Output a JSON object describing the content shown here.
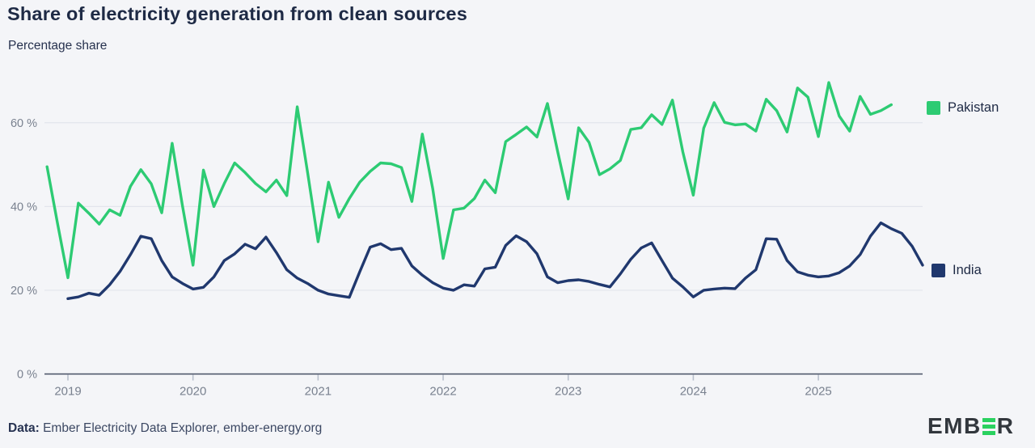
{
  "header": {
    "title": "Share of electricity generation from clean sources",
    "subtitle": "Percentage share"
  },
  "footer": {
    "data_label": "Data:",
    "source_text": " Ember Electricity Data Explorer, ember-energy.org"
  },
  "logo": {
    "text_left": "EMB",
    "text_right": "R",
    "bar_color": "#2ad15f",
    "text_color": "#32373d"
  },
  "chart_data": {
    "type": "line",
    "title": "Share of electricity generation from clean sources",
    "subtitle": "Percentage share",
    "xlabel": "",
    "ylabel": "Percentage share",
    "ylim": [
      0,
      70
    ],
    "x_range_months": [
      -0.25,
      84.0
    ],
    "x_unit": "months since 2018-11",
    "grid": "horizontal",
    "legend_position": "right",
    "colors": {
      "grid": "#e2e5ec",
      "axis_line": "#454e63",
      "tick": "#b8bfcc",
      "axis_text": "#79818f",
      "background": "#f4f5f8"
    },
    "y_ticks": [
      {
        "label": "0 %",
        "value": 0
      },
      {
        "label": "20 %",
        "value": 20
      },
      {
        "label": "40 %",
        "value": 40
      },
      {
        "label": "60 %",
        "value": 60
      }
    ],
    "x_ticks": [
      {
        "label": "2019",
        "month": 2
      },
      {
        "label": "2020",
        "month": 14
      },
      {
        "label": "2021",
        "month": 26
      },
      {
        "label": "2022",
        "month": 38
      },
      {
        "label": "2023",
        "month": 50
      },
      {
        "label": "2024",
        "month": 62
      },
      {
        "label": "2025",
        "month": 74
      }
    ],
    "series": [
      {
        "name": "Pakistan",
        "color": "#2dcb73",
        "start": "2018-11",
        "start_month_index": 0,
        "values": [
          49.5,
          36,
          23,
          40.8,
          38.4,
          35.8,
          39.2,
          37.9,
          44.8,
          48.8,
          45.4,
          38.5,
          55.1,
          40,
          26,
          48.7,
          40,
          45.5,
          50.4,
          48.1,
          45.5,
          43.5,
          46.3,
          42.6,
          63.8,
          48,
          31.6,
          45.8,
          37.4,
          41.9,
          45.8,
          48.4,
          50.4,
          50.2,
          49.3,
          41.2,
          57.3,
          44.2,
          27.6,
          39.2,
          39.6,
          41.9,
          46.3,
          43.3,
          55.5,
          57.2,
          59,
          56.6,
          64.6,
          53,
          41.8,
          58.8,
          55.3,
          47.6,
          49,
          51,
          58.4,
          58.8,
          61.9,
          59.6,
          65.4,
          53,
          42.7,
          58.7,
          64.8,
          60.1,
          59.5,
          59.7,
          58,
          65.6,
          62.9,
          57.8,
          68.3,
          66.1,
          56.7,
          69.6,
          61.6,
          58,
          66.3,
          62,
          62.9,
          64.3
        ]
      },
      {
        "name": "India",
        "color": "#20386e",
        "start": "2019-01",
        "start_month_index": 2,
        "values": [
          18,
          18.4,
          19.3,
          18.8,
          21.3,
          24.5,
          28.5,
          32.9,
          32.3,
          27.1,
          23.2,
          21.6,
          20.3,
          20.7,
          23.2,
          27.1,
          28.7,
          31,
          29.9,
          32.7,
          29,
          24.9,
          22.9,
          21.6,
          20,
          19.1,
          18.7,
          18.3,
          24.4,
          30.3,
          31.1,
          29.7,
          30,
          25.8,
          23.6,
          21.8,
          20.5,
          20,
          21.3,
          21,
          25.1,
          25.5,
          30.7,
          33,
          31.6,
          28.7,
          23.2,
          21.8,
          22.3,
          22.5,
          22.1,
          21.4,
          20.8,
          23.9,
          27.4,
          30.1,
          31.3,
          27.1,
          22.9,
          20.8,
          18.4,
          20,
          20.3,
          20.5,
          20.4,
          22.9,
          24.9,
          32.3,
          32.2,
          27.1,
          24.4,
          23.6,
          23.2,
          23.4,
          24.2,
          25.8,
          28.5,
          32.9,
          36.1,
          34.7,
          33.6,
          30.5,
          26
        ]
      }
    ]
  }
}
